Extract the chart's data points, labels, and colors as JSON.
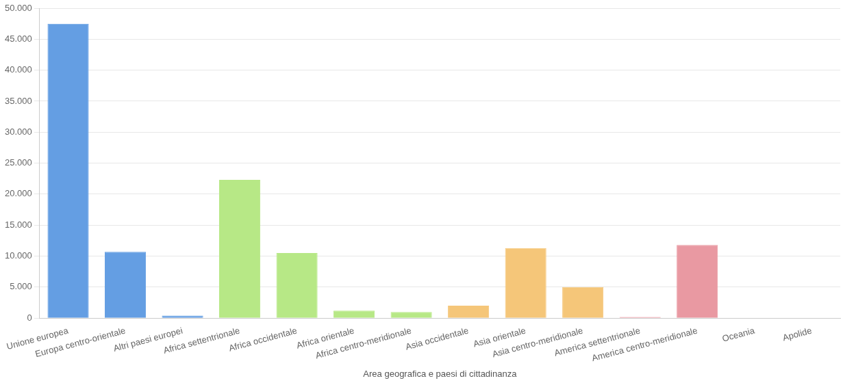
{
  "chart_data": {
    "type": "bar",
    "xlabel": "Area geografica e paesi di cittadinanza",
    "categories": [
      "Unione europea",
      "Europa centro-orientale",
      "Altri paesi europei",
      "Africa settentrionale",
      "Africa occidentale",
      "Africa orientale",
      "Africa centro-meridionale",
      "Asia occidentale",
      "Asia orientale",
      "Asia centro-meridionale",
      "America settentrionale",
      "America centro-meridionale",
      "Oceania",
      "Apolide"
    ],
    "values": [
      47500,
      10700,
      400,
      22300,
      10500,
      1200,
      1000,
      2000,
      11300,
      5000,
      200,
      11800,
      0,
      0
    ],
    "colors": [
      "#649ee3",
      "#649ee3",
      "#649ee3",
      "#b7e886",
      "#b7e886",
      "#b7e886",
      "#b7e886",
      "#f5c679",
      "#f5c679",
      "#f5c679",
      "#e999a2",
      "#e999a2",
      "#9aa5b1",
      "#9aa5b1"
    ],
    "ylim": [
      0,
      50000
    ],
    "yticks": [
      {
        "value": 0,
        "label": "0"
      },
      {
        "value": 5000,
        "label": "5.000"
      },
      {
        "value": 10000,
        "label": "10.000"
      },
      {
        "value": 15000,
        "label": "15.000"
      },
      {
        "value": 20000,
        "label": "20.000"
      },
      {
        "value": 25000,
        "label": "25.000"
      },
      {
        "value": 30000,
        "label": "30.000"
      },
      {
        "value": 35000,
        "label": "35.000"
      },
      {
        "value": 40000,
        "label": "40.000"
      },
      {
        "value": 45000,
        "label": "45.000"
      },
      {
        "value": 50000,
        "label": "50.000"
      }
    ],
    "grid": "y",
    "legend": false
  }
}
